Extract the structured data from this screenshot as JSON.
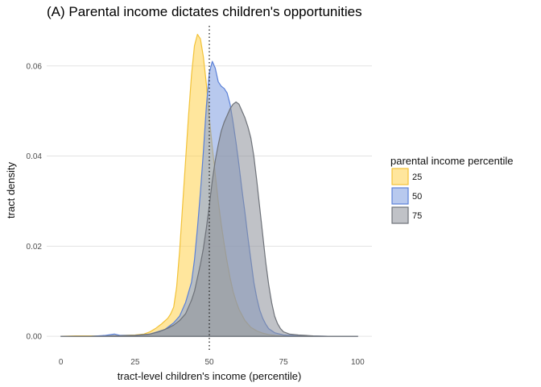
{
  "chart_data": {
    "type": "area",
    "title": "(A) Parental income dictates children's opportunities",
    "xlabel": "tract-level children's income (percentile)",
    "ylabel": "tract density",
    "xlim": [
      0,
      100
    ],
    "ylim": [
      0,
      0.068
    ],
    "xticks": [
      0,
      25,
      50,
      75,
      100
    ],
    "xtick_labels": [
      "0",
      "25",
      "50",
      "75",
      "100"
    ],
    "yticks": [
      0,
      0.02,
      0.04,
      0.06
    ],
    "ytick_labels": [
      "0.00",
      "0.02",
      "0.04",
      "0.06"
    ],
    "grid": true,
    "reference_line": {
      "x": 50,
      "style": "dotted"
    },
    "legend": {
      "title": "parental income percentile",
      "position": "right"
    },
    "series": [
      {
        "name": "25",
        "fill": "#FFD24D",
        "stroke": "#F2C237",
        "x": [
          0,
          5,
          10,
          15,
          20,
          25,
          28,
          30,
          32,
          34,
          36,
          37,
          38,
          39,
          40,
          41,
          42,
          43,
          44,
          45,
          46,
          47,
          48,
          49,
          50,
          51,
          52,
          53,
          54,
          55,
          56,
          57,
          58,
          59,
          60,
          62,
          64,
          66,
          68,
          70,
          72,
          75,
          80,
          90,
          100
        ],
        "y": [
          0,
          0.0001,
          0.0001,
          0.0001,
          0.0002,
          0.0003,
          0.0005,
          0.001,
          0.0018,
          0.0028,
          0.004,
          0.005,
          0.0065,
          0.011,
          0.019,
          0.029,
          0.039,
          0.049,
          0.058,
          0.0645,
          0.067,
          0.066,
          0.062,
          0.056,
          0.0485,
          0.042,
          0.036,
          0.03,
          0.025,
          0.0205,
          0.0165,
          0.013,
          0.01,
          0.0078,
          0.006,
          0.0035,
          0.002,
          0.0012,
          0.0007,
          0.0004,
          0.0002,
          0.0001,
          0,
          0,
          0
        ]
      },
      {
        "name": "50",
        "fill": "#7D9CE0",
        "stroke": "#5A80D8",
        "x": [
          0,
          10,
          15,
          18,
          20,
          25,
          30,
          35,
          38,
          40,
          42,
          44,
          45,
          46,
          47,
          48,
          49,
          50,
          51,
          52,
          53,
          54,
          55,
          56,
          57,
          58,
          59,
          60,
          61,
          62,
          63,
          64,
          65,
          66,
          67,
          68,
          69,
          70,
          72,
          75,
          80,
          90,
          100
        ],
        "y": [
          0,
          0,
          0.0002,
          0.0005,
          0.0002,
          0.0002,
          0.0005,
          0.0015,
          0.003,
          0.0045,
          0.0075,
          0.012,
          0.017,
          0.024,
          0.032,
          0.041,
          0.051,
          0.0585,
          0.061,
          0.0595,
          0.0565,
          0.0555,
          0.055,
          0.054,
          0.0515,
          0.0475,
          0.043,
          0.038,
          0.0325,
          0.0275,
          0.022,
          0.017,
          0.012,
          0.0085,
          0.0058,
          0.004,
          0.0027,
          0.0017,
          0.0008,
          0.0003,
          0.0001,
          0,
          0
        ]
      },
      {
        "name": "75",
        "fill": "#8C9099",
        "stroke": "#6E7279",
        "x": [
          0,
          10,
          20,
          25,
          30,
          33,
          36,
          38,
          40,
          42,
          43,
          44,
          45,
          46,
          47,
          48,
          49,
          50,
          51,
          52,
          53,
          54,
          55,
          56,
          57,
          58,
          59,
          60,
          61,
          62,
          63,
          64,
          65,
          66,
          67,
          68,
          69,
          70,
          71,
          72,
          73,
          74,
          75,
          77,
          80,
          85,
          90,
          100
        ],
        "y": [
          0,
          0,
          0.0001,
          0.0002,
          0.0005,
          0.001,
          0.0018,
          0.0025,
          0.0035,
          0.005,
          0.0065,
          0.008,
          0.01,
          0.013,
          0.016,
          0.0195,
          0.024,
          0.029,
          0.0345,
          0.039,
          0.0425,
          0.0455,
          0.0475,
          0.049,
          0.0505,
          0.0515,
          0.052,
          0.0515,
          0.05,
          0.0485,
          0.0465,
          0.044,
          0.04,
          0.0345,
          0.0285,
          0.0225,
          0.0165,
          0.0115,
          0.0075,
          0.0045,
          0.0028,
          0.0017,
          0.001,
          0.0005,
          0.0003,
          0.0001,
          0,
          0
        ]
      }
    ]
  }
}
